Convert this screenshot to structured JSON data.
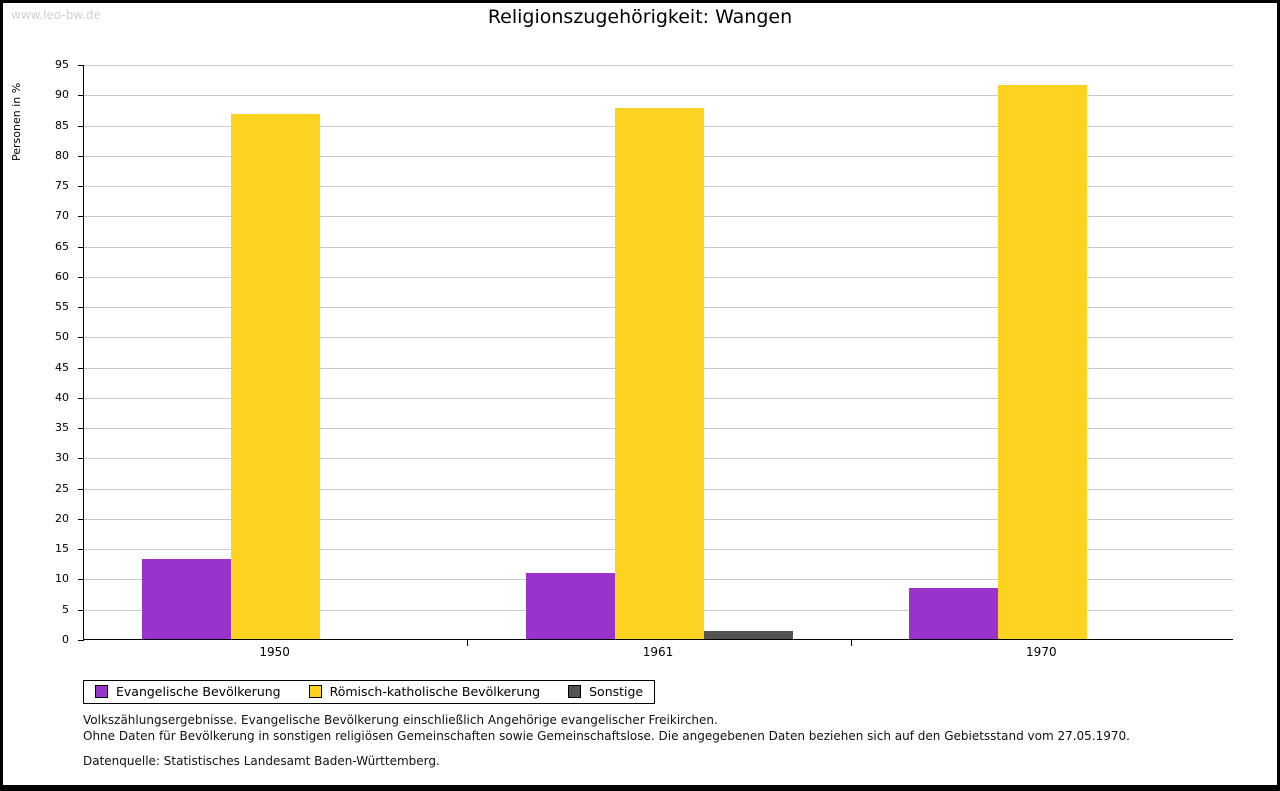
{
  "watermark": "www.leo-bw.de",
  "chart_data": {
    "type": "bar",
    "title": "Religionszugehörigkeit: Wangen",
    "xlabel": "",
    "ylabel": "Personen in %",
    "categories": [
      "1950",
      "1961",
      "1970"
    ],
    "series": [
      {
        "key": "evangelisch",
        "name": "Evangelische Bevölkerung",
        "color": "#9933cc",
        "values": [
          13.2,
          10.9,
          8.5
        ]
      },
      {
        "key": "katholisch",
        "name": "Römisch-katholische Bevölkerung",
        "color": "#fdd320",
        "values": [
          86.8,
          87.8,
          91.5
        ]
      },
      {
        "key": "sonstige",
        "name": "Sonstige",
        "color": "#545454",
        "values": [
          0.0,
          1.3,
          0.0
        ]
      }
    ],
    "ylim": [
      0,
      95
    ],
    "ytick_step": 5,
    "grid": true,
    "legend_position": "bottom"
  },
  "footnotes": {
    "line1": "Volkszählungsergebnisse. Evangelische Bevölkerung einschließlich Angehörige evangelischer Freikirchen.",
    "line2": "Ohne Daten für Bevölkerung in sonstigen religiösen Gemeinschaften sowie Gemeinschaftslose. Die angegebenen Daten beziehen sich auf den Gebietsstand vom 27.05.1970.",
    "source": "Datenquelle: Statistisches Landesamt Baden-Württemberg."
  }
}
